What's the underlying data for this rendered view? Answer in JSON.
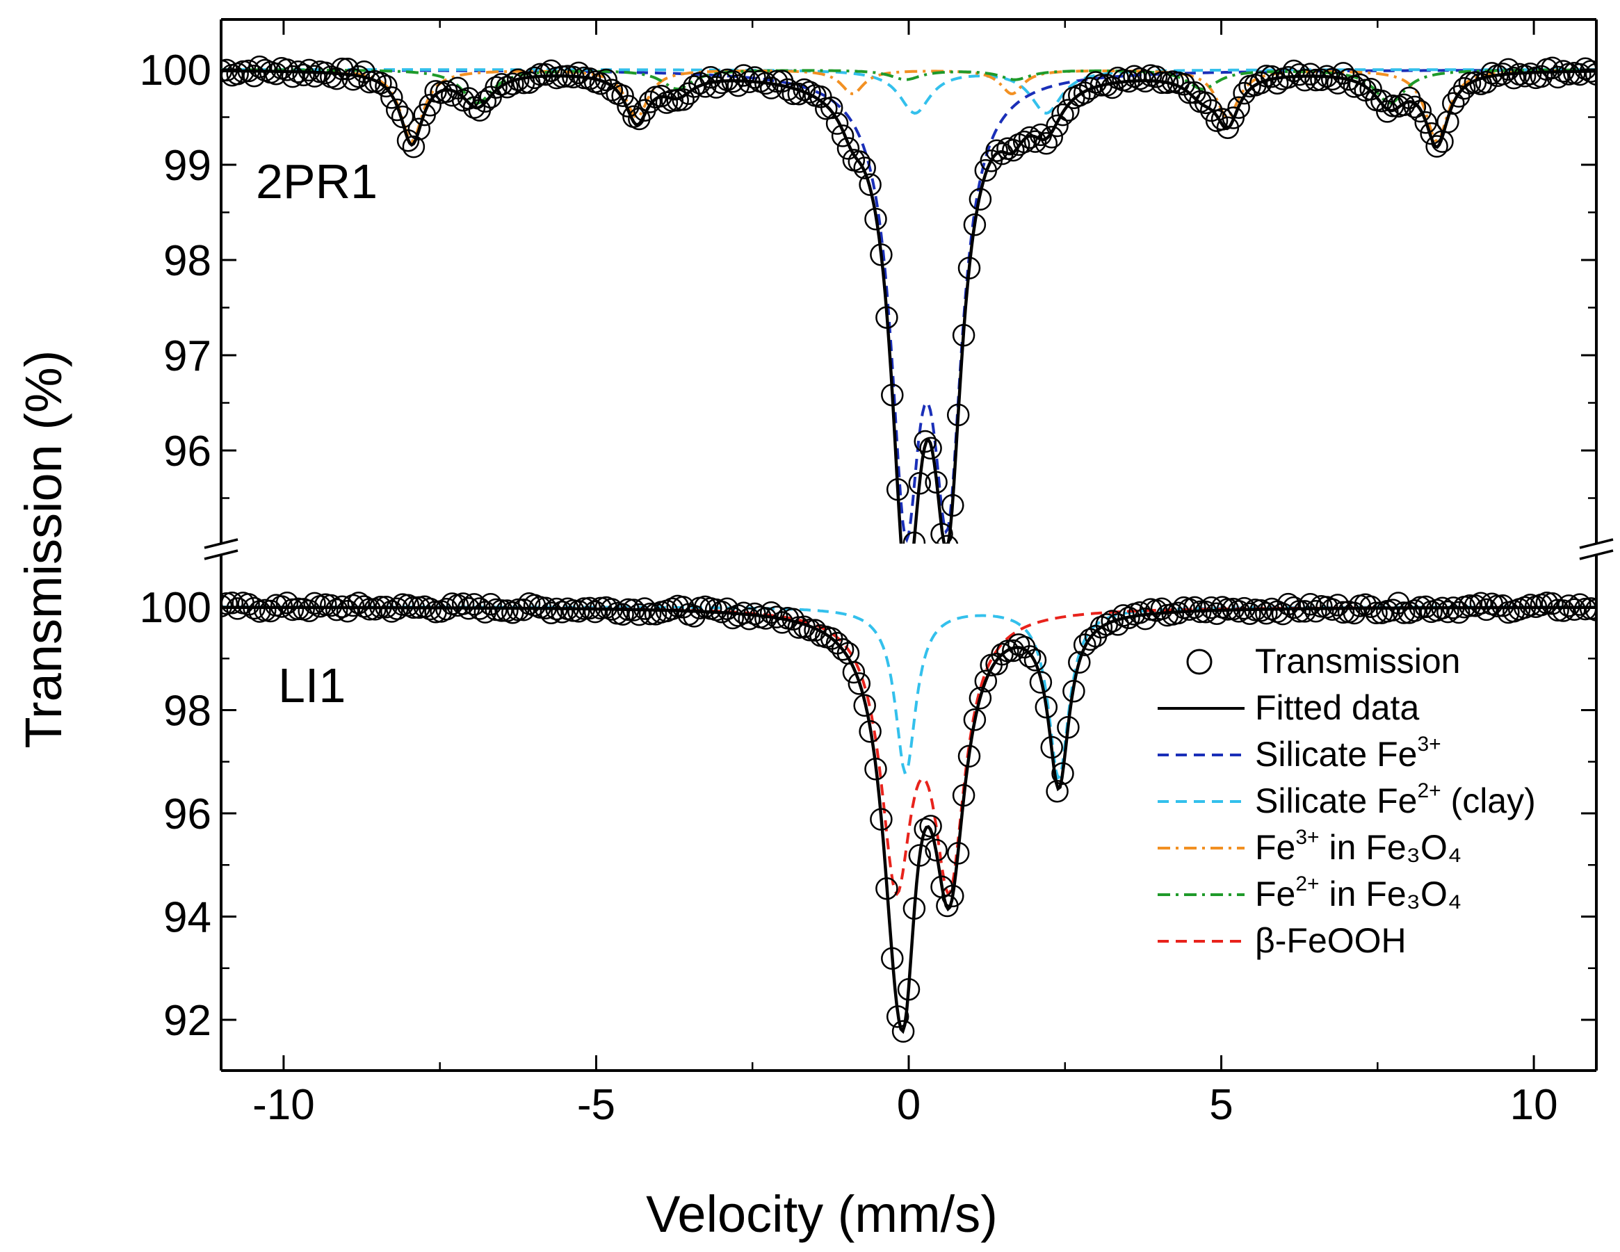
{
  "chart_data": {
    "type": "line",
    "xlabel": "Velocity (mm/s)",
    "ylabel": "Transmission (%)",
    "xlim": [
      -11,
      11
    ],
    "xticks": [
      -10,
      -5,
      0,
      5,
      10
    ],
    "grid": false,
    "legend_placement": "bottom-right",
    "legend": [
      {
        "key": "transmission",
        "label": "Transmission",
        "style": "open-circle",
        "color": "#000000"
      },
      {
        "key": "fit",
        "label": "Fitted data",
        "style": "solid",
        "color": "#000000"
      },
      {
        "key": "sil3",
        "label": "Silicate Fe",
        "sup": "3+",
        "style": "dashed",
        "color": "#1a2fb8"
      },
      {
        "key": "sil2",
        "label": "Silicate Fe",
        "sup": "2+",
        "suffix": " (clay)",
        "style": "dashed",
        "color": "#33c0ec"
      },
      {
        "key": "fe3mag",
        "label": "Fe",
        "sup": "3+",
        "suffix": " in Fe₃O₄",
        "style": "dashdot",
        "color": "#f29022"
      },
      {
        "key": "fe2mag",
        "label": "Fe",
        "sup": "2+",
        "suffix": " in Fe₃O₄",
        "style": "dashdot",
        "color": "#1f9a2a"
      },
      {
        "key": "feooh",
        "label": "β-FeOOH",
        "style": "dashed",
        "color": "#e8231c"
      }
    ],
    "panels": [
      {
        "label": "2PR1",
        "ylim": [
          95.0,
          100.5
        ],
        "yticks": [
          96,
          97,
          98,
          99,
          100
        ],
        "components": [
          {
            "key": "sil3",
            "baseline": 100,
            "peaks": [
              {
                "x": -0.05,
                "depth": 4.3,
                "w": 0.28
              },
              {
                "x": 0.62,
                "depth": 4.2,
                "w": 0.28
              }
            ]
          },
          {
            "key": "sil2",
            "baseline": 100,
            "peaks": [
              {
                "x": 0.1,
                "depth": 0.45,
                "w": 0.3
              },
              {
                "x": 2.2,
                "depth": 0.45,
                "w": 0.3
              }
            ]
          },
          {
            "key": "fe3mag",
            "baseline": 100,
            "peaks": [
              {
                "x": -7.95,
                "depth": 0.75,
                "w": 0.22
              },
              {
                "x": -4.35,
                "depth": 0.5,
                "w": 0.22
              },
              {
                "x": -0.9,
                "depth": 0.25,
                "w": 0.22
              },
              {
                "x": 1.65,
                "depth": 0.25,
                "w": 0.22
              },
              {
                "x": 5.1,
                "depth": 0.5,
                "w": 0.22
              },
              {
                "x": 8.45,
                "depth": 0.75,
                "w": 0.22
              }
            ]
          },
          {
            "key": "fe2mag",
            "baseline": 100,
            "peaks": [
              {
                "x": -6.9,
                "depth": 0.35,
                "w": 0.3
              },
              {
                "x": -3.7,
                "depth": 0.2,
                "w": 0.3
              },
              {
                "x": -0.05,
                "depth": 0.1,
                "w": 0.3
              },
              {
                "x": 1.7,
                "depth": 0.1,
                "w": 0.3
              },
              {
                "x": 4.7,
                "depth": 0.2,
                "w": 0.3
              },
              {
                "x": 7.7,
                "depth": 0.35,
                "w": 0.3
              }
            ]
          }
        ]
      },
      {
        "label": "LI1",
        "ylim": [
          91,
          100.6
        ],
        "yticks": [
          92,
          94,
          96,
          98,
          100
        ],
        "components": [
          {
            "key": "sil2",
            "baseline": 100,
            "peaks": [
              {
                "x": -0.05,
                "depth": 3.2,
                "w": 0.2
              },
              {
                "x": 2.4,
                "depth": 3.3,
                "w": 0.2
              }
            ]
          },
          {
            "key": "feooh",
            "baseline": 100,
            "peaks": [
              {
                "x": -0.2,
                "depth": 5.0,
                "w": 0.3
              },
              {
                "x": 0.65,
                "depth": 5.0,
                "w": 0.3
              }
            ]
          }
        ]
      }
    ]
  }
}
